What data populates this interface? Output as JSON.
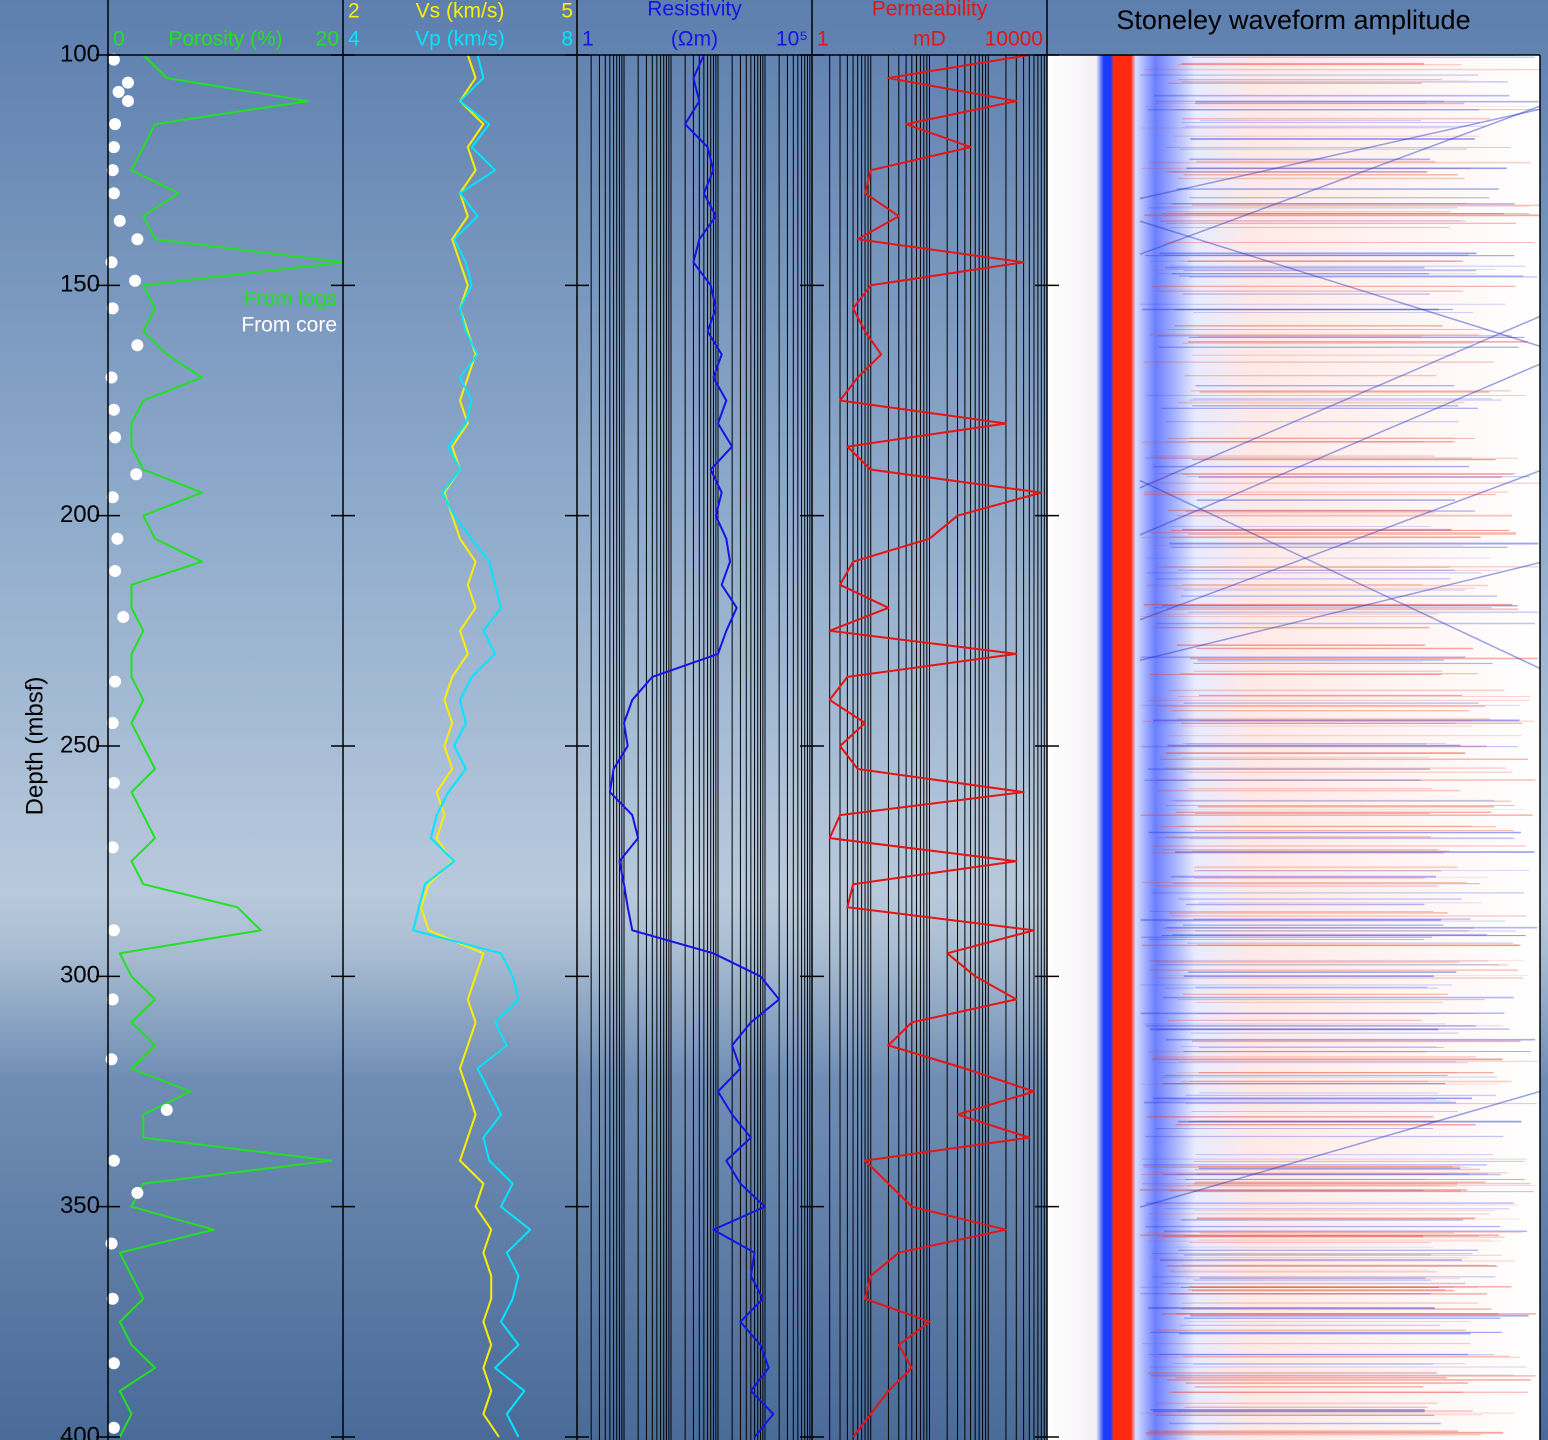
{
  "chart_data": [
    {
      "type": "line",
      "ylabel": "Depth (mbsf)",
      "ylim": [
        100,
        400
      ],
      "yticks": [
        100,
        150,
        200,
        250,
        300,
        350,
        400
      ],
      "xlabel": "Porosity (%)",
      "xlim": [
        0,
        20
      ],
      "xticks": [
        0,
        20
      ],
      "legend": "upper right",
      "depth": [
        100,
        105,
        110,
        115,
        120,
        125,
        130,
        135,
        140,
        145,
        150,
        155,
        160,
        165,
        170,
        175,
        180,
        185,
        190,
        195,
        200,
        205,
        210,
        215,
        220,
        225,
        230,
        235,
        240,
        245,
        250,
        255,
        260,
        265,
        270,
        275,
        280,
        285,
        290,
        295,
        300,
        305,
        310,
        315,
        320,
        325,
        330,
        335,
        340,
        345,
        350,
        355,
        360,
        365,
        370,
        375,
        380,
        385,
        390,
        395,
        400
      ],
      "series": [
        {
          "name": "From logs",
          "color": "#22e022",
          "type": "line",
          "values": [
            3,
            5,
            17,
            4,
            3,
            2,
            6,
            3,
            4,
            20,
            3,
            4,
            3,
            5,
            8,
            3,
            2,
            2,
            3,
            8,
            3,
            4,
            8,
            2,
            2,
            3,
            2,
            2,
            3,
            2,
            3,
            4,
            2,
            3,
            4,
            2,
            3,
            11,
            13,
            1,
            2,
            4,
            2,
            4,
            2,
            7,
            3,
            3,
            19,
            3,
            2,
            9,
            1,
            2,
            3,
            1,
            2,
            4,
            1,
            2,
            1
          ]
        },
        {
          "name": "From core",
          "color": "#ffffff",
          "type": "scatter",
          "depth": [
            101,
            106,
            108,
            110,
            115,
            120,
            125,
            130,
            136,
            140,
            145,
            149,
            155,
            163,
            170,
            177,
            183,
            191,
            196,
            205,
            212,
            222,
            236,
            245,
            258,
            272,
            290,
            305,
            318,
            329,
            340,
            347,
            358,
            370,
            384,
            398
          ],
          "values": [
            0.5,
            1.7,
            0.9,
            1.7,
            0.6,
            0.5,
            0.4,
            0.5,
            1.0,
            2.5,
            0.3,
            2.3,
            0.4,
            2.5,
            0.3,
            0.5,
            0.6,
            2.4,
            0.4,
            0.8,
            0.6,
            1.3,
            0.6,
            0.4,
            0.5,
            0.4,
            0.5,
            0.4,
            0.3,
            5.0,
            0.5,
            2.5,
            0.3,
            0.4,
            0.5,
            0.5
          ]
        }
      ]
    },
    {
      "type": "line",
      "xlabel": "Vs (km/s)",
      "xlim": [
        2,
        5
      ],
      "xticks": [
        2,
        5
      ],
      "x2label": "Vp (km/s)",
      "x2lim": [
        4,
        8
      ],
      "x2ticks": [
        4,
        8
      ],
      "depth": [
        100,
        105,
        110,
        115,
        120,
        125,
        130,
        135,
        140,
        145,
        150,
        155,
        160,
        165,
        170,
        175,
        180,
        185,
        190,
        195,
        200,
        205,
        210,
        215,
        220,
        225,
        230,
        235,
        240,
        245,
        250,
        255,
        260,
        265,
        270,
        275,
        280,
        285,
        290,
        295,
        300,
        305,
        310,
        315,
        320,
        325,
        330,
        335,
        340,
        345,
        350,
        355,
        360,
        365,
        370,
        375,
        380,
        385,
        390,
        395,
        400
      ],
      "series": [
        {
          "name": "Vs",
          "color": "#ffee00",
          "type": "line",
          "values": [
            3.6,
            3.7,
            3.5,
            3.8,
            3.6,
            3.7,
            3.5,
            3.6,
            3.4,
            3.5,
            3.6,
            3.5,
            3.6,
            3.7,
            3.6,
            3.5,
            3.6,
            3.4,
            3.5,
            3.3,
            3.4,
            3.5,
            3.7,
            3.6,
            3.7,
            3.5,
            3.6,
            3.4,
            3.3,
            3.4,
            3.3,
            3.4,
            3.2,
            3.3,
            3.2,
            3.4,
            3.1,
            3.0,
            3.1,
            3.8,
            3.7,
            3.6,
            3.7,
            3.6,
            3.5,
            3.6,
            3.7,
            3.6,
            3.5,
            3.8,
            3.7,
            3.9,
            3.8,
            3.9,
            3.9,
            3.8,
            3.9,
            3.8,
            3.9,
            3.8,
            4.0
          ]
        },
        {
          "name": "Vp",
          "color": "#00e5ff",
          "type": "line",
          "axis": "x2",
          "values": [
            6.3,
            6.4,
            6.0,
            6.5,
            6.2,
            6.6,
            6.0,
            6.3,
            5.9,
            6.1,
            6.2,
            6.0,
            6.1,
            6.3,
            6.0,
            6.2,
            6.1,
            5.8,
            6.0,
            5.7,
            5.9,
            6.2,
            6.5,
            6.6,
            6.7,
            6.4,
            6.6,
            6.2,
            6.0,
            6.1,
            5.9,
            6.1,
            5.8,
            5.6,
            5.5,
            5.9,
            5.4,
            5.3,
            5.2,
            6.7,
            6.9,
            7.0,
            6.6,
            6.8,
            6.3,
            6.5,
            6.7,
            6.4,
            6.5,
            6.9,
            6.7,
            7.2,
            6.8,
            7.0,
            6.9,
            6.7,
            7.0,
            6.6,
            7.1,
            6.8,
            7.0
          ]
        }
      ]
    },
    {
      "type": "line",
      "title": "Resistivity",
      "xlabel": "(Ωm)",
      "xlog": true,
      "xlim": [
        1,
        100000
      ],
      "xticks": [
        1,
        {
          "value": 100000,
          "label": "10⁵"
        }
      ],
      "minor_xticks": [
        1,
        2,
        3,
        4,
        5,
        6,
        7,
        8,
        9,
        10,
        20,
        30,
        40,
        50,
        60,
        70,
        80,
        90,
        100,
        200,
        300,
        400,
        500,
        600,
        700,
        800,
        900,
        1000,
        2000,
        3000,
        4000,
        5000,
        6000,
        7000,
        8000,
        9000,
        10000,
        20000,
        30000,
        40000,
        50000,
        60000,
        70000,
        80000,
        90000,
        100000
      ],
      "depth": [
        100,
        105,
        110,
        115,
        120,
        125,
        130,
        135,
        140,
        145,
        150,
        155,
        160,
        165,
        170,
        175,
        180,
        185,
        190,
        195,
        200,
        205,
        210,
        215,
        220,
        225,
        230,
        235,
        240,
        245,
        250,
        255,
        260,
        265,
        270,
        275,
        280,
        285,
        290,
        295,
        300,
        305,
        310,
        315,
        320,
        325,
        330,
        335,
        340,
        345,
        350,
        355,
        360,
        365,
        370,
        375,
        380,
        385,
        390,
        395,
        400
      ],
      "series": [
        {
          "name": "Resistivity",
          "color": "#1414e6",
          "type": "line",
          "values": [
            500,
            300,
            400,
            200,
            600,
            800,
            500,
            900,
            400,
            300,
            700,
            900,
            600,
            1200,
            800,
            1500,
            1000,
            2000,
            700,
            1200,
            900,
            1500,
            1800,
            1200,
            2500,
            1500,
            1000,
            40,
            15,
            10,
            12,
            6,
            5,
            15,
            20,
            8,
            10,
            12,
            15,
            800,
            8000,
            20000,
            5000,
            2000,
            3000,
            1000,
            2000,
            5000,
            1500,
            3000,
            10000,
            800,
            6000,
            5000,
            9000,
            3000,
            8000,
            12000,
            5000,
            15000,
            6000
          ]
        }
      ]
    },
    {
      "type": "line",
      "title": "Permeability",
      "xlabel": "mD",
      "xlog": true,
      "xlim": [
        1,
        10000
      ],
      "xticks": [
        1,
        10000
      ],
      "minor_xticks": [
        1,
        2,
        3,
        4,
        5,
        6,
        7,
        8,
        9,
        10,
        20,
        30,
        40,
        50,
        60,
        70,
        80,
        90,
        100,
        200,
        300,
        400,
        500,
        600,
        700,
        800,
        900,
        1000,
        2000,
        3000,
        4000,
        5000,
        6000,
        7000,
        8000,
        9000,
        10000
      ],
      "depth": [
        100,
        105,
        110,
        115,
        120,
        125,
        130,
        135,
        140,
        145,
        150,
        155,
        160,
        165,
        170,
        175,
        180,
        185,
        190,
        195,
        200,
        205,
        210,
        215,
        220,
        225,
        230,
        235,
        240,
        245,
        250,
        255,
        260,
        265,
        270,
        275,
        280,
        285,
        290,
        295,
        300,
        305,
        310,
        315,
        320,
        325,
        330,
        335,
        340,
        345,
        350,
        355,
        360,
        365,
        370,
        375,
        380,
        385,
        390,
        395,
        400
      ],
      "series": [
        {
          "name": "Permeability",
          "color": "#e61414",
          "type": "line",
          "values": [
            5000,
            20,
            3000,
            40,
            500,
            10,
            8,
            30,
            6,
            4000,
            10,
            5,
            8,
            15,
            6,
            3,
            2000,
            4,
            10,
            8000,
            300,
            100,
            5,
            3,
            20,
            2,
            3000,
            4,
            2,
            8,
            3,
            6,
            4000,
            3,
            2,
            3000,
            5,
            4,
            6000,
            200,
            600,
            3000,
            50,
            20,
            400,
            6000,
            300,
            5000,
            8,
            20,
            50,
            2000,
            30,
            10,
            8,
            100,
            30,
            50,
            20,
            10,
            5
          ]
        }
      ]
    },
    {
      "type": "image",
      "title": "Stoneley waveform amplitude"
    }
  ]
}
